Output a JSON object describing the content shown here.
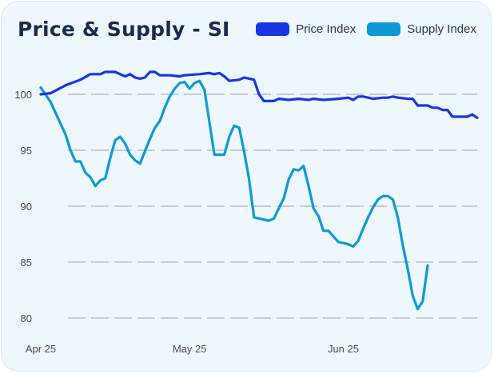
{
  "header": {
    "title": "Price & Supply - SI"
  },
  "colors": {
    "price": "#1737e3",
    "supply": "#0e9ad6",
    "grid": "#9aa3ad",
    "background": "#eef7fc"
  },
  "chart_data": {
    "type": "line",
    "title": "Price & Supply - SI",
    "xlabel": "",
    "ylabel": "",
    "ylim": [
      80,
      100
    ],
    "yticks": [
      80,
      85,
      90,
      95,
      100
    ],
    "xticks": [
      {
        "label": "Apr 25",
        "x": 0
      },
      {
        "label": "May 25",
        "x": 30
      },
      {
        "label": "Jun 25",
        "x": 61
      }
    ],
    "grid": true,
    "legend": "top-right",
    "series": [
      {
        "name": "Price Index",
        "color": "#1737e3",
        "points": [
          [
            0,
            100.0
          ],
          [
            2,
            100.1
          ],
          [
            5,
            100.8
          ],
          [
            8,
            101.3
          ],
          [
            10,
            101.8
          ],
          [
            11,
            101.8
          ],
          [
            12,
            101.8
          ],
          [
            13,
            102.0
          ],
          [
            15,
            102.0
          ],
          [
            17,
            101.6
          ],
          [
            18,
            101.8
          ],
          [
            19,
            101.5
          ],
          [
            20,
            101.4
          ],
          [
            21,
            101.5
          ],
          [
            22,
            102.0
          ],
          [
            23,
            102.0
          ],
          [
            24,
            101.7
          ],
          [
            26,
            101.7
          ],
          [
            28,
            101.6
          ],
          [
            29,
            101.7
          ],
          [
            32,
            101.8
          ],
          [
            34,
            101.9
          ],
          [
            35,
            101.8
          ],
          [
            36,
            101.9
          ],
          [
            37,
            101.6
          ],
          [
            38,
            101.2
          ],
          [
            40,
            101.3
          ],
          [
            41,
            101.5
          ],
          [
            43,
            101.3
          ],
          [
            44,
            100.0
          ],
          [
            45,
            99.4
          ],
          [
            47,
            99.4
          ],
          [
            48,
            99.6
          ],
          [
            50,
            99.5
          ],
          [
            52,
            99.6
          ],
          [
            54,
            99.5
          ],
          [
            55,
            99.6
          ],
          [
            57,
            99.5
          ],
          [
            60,
            99.6
          ],
          [
            62,
            99.7
          ],
          [
            63,
            99.5
          ],
          [
            64,
            99.8
          ],
          [
            65,
            99.8
          ],
          [
            67,
            99.6
          ],
          [
            69,
            99.7
          ],
          [
            70,
            99.7
          ],
          [
            71,
            99.8
          ],
          [
            72,
            99.7
          ],
          [
            74,
            99.6
          ],
          [
            75,
            99.6
          ],
          [
            76,
            99.0
          ],
          [
            78,
            99.0
          ],
          [
            79,
            98.8
          ],
          [
            80,
            98.8
          ],
          [
            81,
            98.6
          ],
          [
            82,
            98.6
          ],
          [
            83,
            98.0
          ],
          [
            84,
            98.0
          ],
          [
            86,
            98.0
          ],
          [
            87,
            98.2
          ],
          [
            88,
            97.9
          ]
        ]
      },
      {
        "name": "Supply Index",
        "color": "#0e9ad6",
        "points": [
          [
            0,
            100.6
          ],
          [
            2,
            99.3
          ],
          [
            5,
            96.4
          ],
          [
            6,
            95.0
          ],
          [
            7,
            94.0
          ],
          [
            8,
            94.0
          ],
          [
            9,
            93.0
          ],
          [
            10,
            92.6
          ],
          [
            11,
            91.8
          ],
          [
            12,
            92.3
          ],
          [
            13,
            92.5
          ],
          [
            14,
            94.3
          ],
          [
            15,
            95.9
          ],
          [
            16,
            96.2
          ],
          [
            17,
            95.6
          ],
          [
            18,
            94.6
          ],
          [
            19,
            94.1
          ],
          [
            20,
            93.8
          ],
          [
            21,
            94.9
          ],
          [
            22,
            96.0
          ],
          [
            23,
            97.0
          ],
          [
            24,
            97.6
          ],
          [
            25,
            98.8
          ],
          [
            26,
            99.8
          ],
          [
            27,
            100.5
          ],
          [
            28,
            101.0
          ],
          [
            29,
            101.1
          ],
          [
            30,
            100.5
          ],
          [
            31,
            101.0
          ],
          [
            32,
            101.2
          ],
          [
            33,
            100.4
          ],
          [
            34,
            97.5
          ],
          [
            35,
            94.6
          ],
          [
            36,
            94.6
          ],
          [
            37,
            94.6
          ],
          [
            38,
            96.2
          ],
          [
            39,
            97.2
          ],
          [
            40,
            97.0
          ],
          [
            41,
            94.9
          ],
          [
            42,
            92.4
          ],
          [
            43,
            89.0
          ],
          [
            44,
            88.9
          ],
          [
            45,
            88.8
          ],
          [
            46,
            88.7
          ],
          [
            47,
            88.9
          ],
          [
            48,
            89.8
          ],
          [
            49,
            90.7
          ],
          [
            50,
            92.4
          ],
          [
            51,
            93.3
          ],
          [
            52,
            93.2
          ],
          [
            53,
            93.6
          ],
          [
            54,
            91.8
          ],
          [
            55,
            89.8
          ],
          [
            56,
            89.1
          ],
          [
            57,
            87.8
          ],
          [
            58,
            87.8
          ],
          [
            59,
            87.3
          ],
          [
            60,
            86.8
          ],
          [
            62,
            86.6
          ],
          [
            63,
            86.4
          ],
          [
            64,
            86.9
          ],
          [
            65,
            88.0
          ],
          [
            66,
            89.0
          ],
          [
            67,
            89.9
          ],
          [
            68,
            90.6
          ],
          [
            69,
            90.9
          ],
          [
            70,
            90.9
          ],
          [
            71,
            90.6
          ],
          [
            72,
            89.0
          ],
          [
            73,
            86.5
          ],
          [
            74,
            84.4
          ],
          [
            75,
            82.0
          ],
          [
            76,
            80.8
          ],
          [
            77,
            81.5
          ],
          [
            78,
            84.7
          ]
        ]
      }
    ]
  }
}
